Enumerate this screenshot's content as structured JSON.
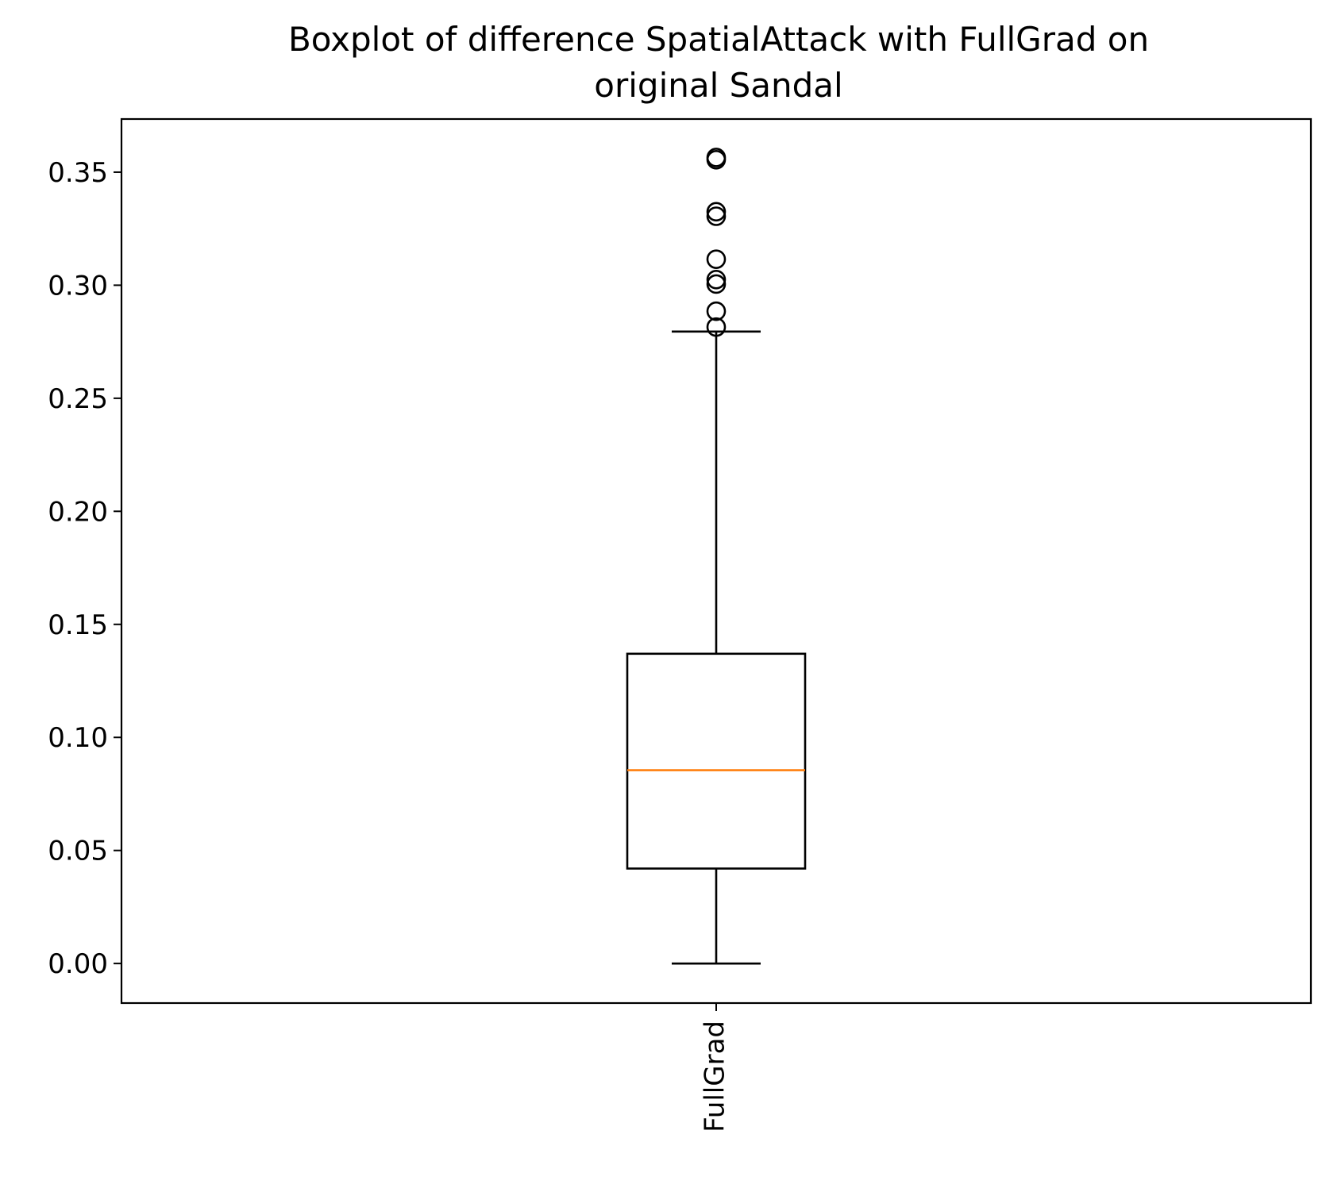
{
  "chart_data": {
    "type": "box",
    "title_lines": [
      "Boxplot of difference SpatialAttack with FullGrad on",
      "original Sandal"
    ],
    "xlabel": "",
    "ylabel": "",
    "categories": [
      "FullGrad"
    ],
    "boxes": [
      {
        "name": "FullGrad",
        "whisker_low": 0.0,
        "q1": 0.042,
        "median": 0.0855,
        "q3": 0.137,
        "whisker_high": 0.2795,
        "outliers": [
          0.2815,
          0.2885,
          0.3005,
          0.3025,
          0.3115,
          0.3305,
          0.3325,
          0.3555,
          0.3565
        ]
      }
    ],
    "ylim": [
      -0.0175,
      0.3735
    ],
    "yticks": [
      0.0,
      0.05,
      0.1,
      0.15,
      0.2,
      0.25,
      0.3,
      0.35
    ],
    "ytick_labels": [
      "0.00",
      "0.05",
      "0.10",
      "0.15",
      "0.20",
      "0.25",
      "0.30",
      "0.35"
    ],
    "grid": false,
    "colors": {
      "box": "#000000",
      "median": "#ff7f0e",
      "outlier": "#000000",
      "axes": "#000000"
    }
  }
}
